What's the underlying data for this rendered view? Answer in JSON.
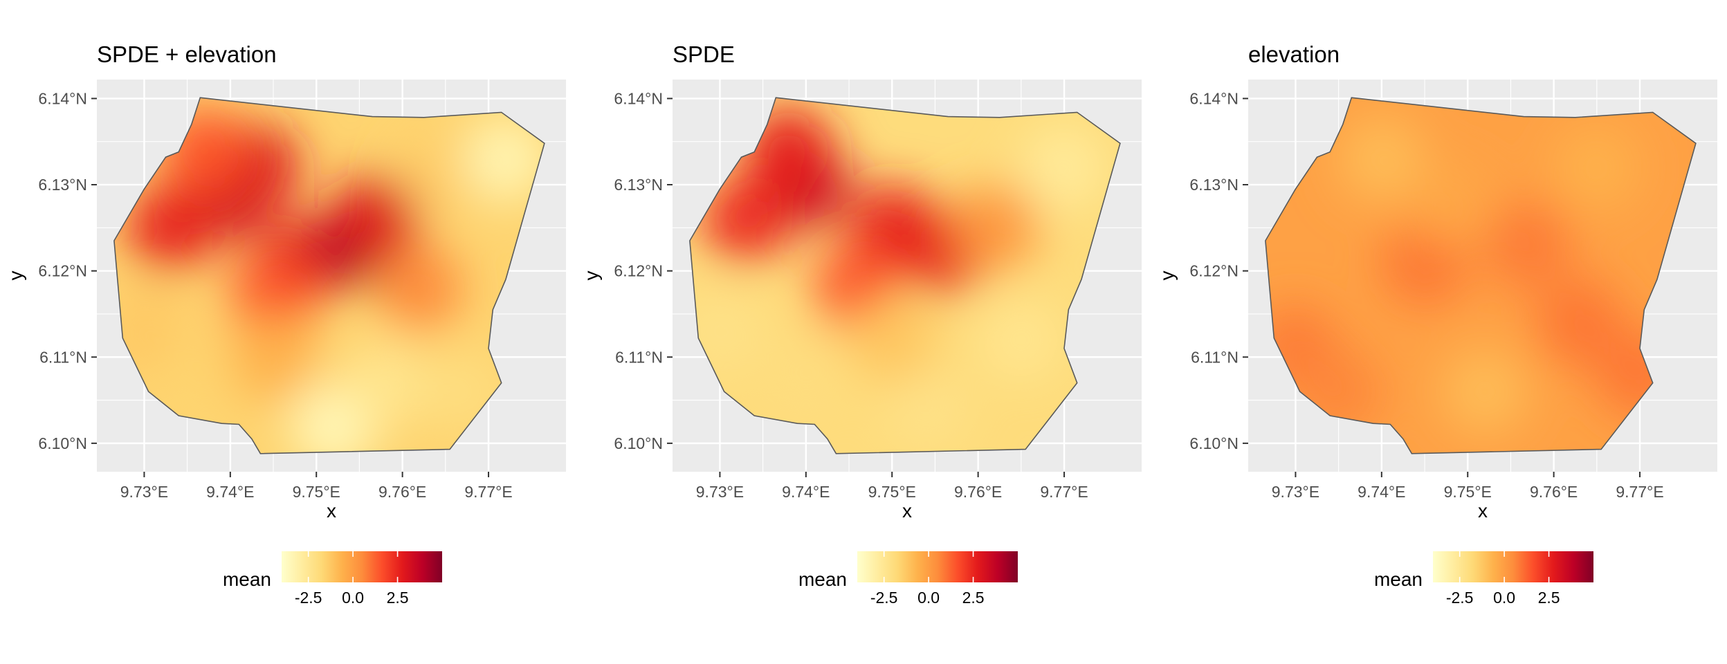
{
  "chart_data": [
    {
      "type": "heatmap",
      "title": "SPDE + elevation",
      "xlabel": "x",
      "ylabel": "y",
      "x_ticks": [
        "9.73°E",
        "9.74°E",
        "9.75°E",
        "9.76°E",
        "9.77°E"
      ],
      "y_ticks": [
        "6.10°N",
        "6.11°N",
        "6.12°N",
        "6.13°N",
        "6.14°N"
      ],
      "legend": {
        "title": "mean",
        "ticks": [
          "-2.5",
          "0.0",
          "2.5"
        ],
        "range": [
          -4,
          5
        ],
        "position": "bottom"
      },
      "blobs": [
        {
          "x": 9.74,
          "y": 6.1285,
          "value": 3.4
        },
        {
          "x": 9.743,
          "y": 6.132,
          "value": 3.0
        },
        {
          "x": 9.733,
          "y": 6.125,
          "value": 2.6
        },
        {
          "x": 9.748,
          "y": 6.121,
          "value": 2.8
        },
        {
          "x": 9.755,
          "y": 6.1235,
          "value": 4.3
        },
        {
          "x": 9.757,
          "y": 6.126,
          "value": 3.0
        },
        {
          "x": 9.745,
          "y": 6.117,
          "value": 1.6
        },
        {
          "x": 9.737,
          "y": 6.134,
          "value": 1.5
        },
        {
          "x": 9.762,
          "y": 6.118,
          "value": 0.5
        },
        {
          "x": 9.765,
          "y": 6.131,
          "value": -1.4
        },
        {
          "x": 9.772,
          "y": 6.133,
          "value": -3.3
        },
        {
          "x": 9.73,
          "y": 6.113,
          "value": -1.3
        },
        {
          "x": 9.737,
          "y": 6.108,
          "value": -1.6
        },
        {
          "x": 9.752,
          "y": 6.102,
          "value": -3.5
        },
        {
          "x": 9.758,
          "y": 6.107,
          "value": -2.4
        },
        {
          "x": 9.767,
          "y": 6.106,
          "value": -2.0
        },
        {
          "x": 9.745,
          "y": 6.11,
          "value": -0.6
        }
      ]
    },
    {
      "type": "heatmap",
      "title": "SPDE",
      "xlabel": "x",
      "ylabel": "y",
      "x_ticks": [
        "9.73°E",
        "9.74°E",
        "9.75°E",
        "9.76°E",
        "9.77°E"
      ],
      "y_ticks": [
        "6.10°N",
        "6.11°N",
        "6.12°N",
        "6.13°N",
        "6.14°N"
      ],
      "legend": {
        "title": "mean",
        "ticks": [
          "-2.5",
          "0.0",
          "2.5"
        ],
        "range": [
          -4,
          5
        ],
        "position": "bottom"
      },
      "blobs": [
        {
          "x": 9.74,
          "y": 6.13,
          "value": 3.6
        },
        {
          "x": 9.738,
          "y": 6.134,
          "value": 2.7
        },
        {
          "x": 9.733,
          "y": 6.126,
          "value": 2.4
        },
        {
          "x": 9.75,
          "y": 6.125,
          "value": 2.6
        },
        {
          "x": 9.756,
          "y": 6.1225,
          "value": 2.6
        },
        {
          "x": 9.746,
          "y": 6.118,
          "value": 1.6
        },
        {
          "x": 9.762,
          "y": 6.125,
          "value": 0.2
        },
        {
          "x": 9.77,
          "y": 6.132,
          "value": -2.7
        },
        {
          "x": 9.73,
          "y": 6.113,
          "value": -2.2
        },
        {
          "x": 9.74,
          "y": 6.108,
          "value": -2.0
        },
        {
          "x": 9.754,
          "y": 6.104,
          "value": -2.2
        },
        {
          "x": 9.765,
          "y": 6.112,
          "value": -2.4
        },
        {
          "x": 9.75,
          "y": 6.112,
          "value": -1.2
        }
      ]
    },
    {
      "type": "heatmap",
      "title": "elevation",
      "xlabel": "x",
      "ylabel": "y",
      "x_ticks": [
        "9.73°E",
        "9.74°E",
        "9.75°E",
        "9.76°E",
        "9.77°E"
      ],
      "y_ticks": [
        "6.10°N",
        "6.11°N",
        "6.12°N",
        "6.13°N",
        "6.14°N"
      ],
      "legend": {
        "title": "mean",
        "ticks": [
          "-2.5",
          "0.0",
          "2.5"
        ],
        "range": [
          -4,
          5
        ],
        "position": "bottom"
      },
      "blobs": [
        {
          "x": 9.745,
          "y": 6.121,
          "value": 0.9
        },
        {
          "x": 9.757,
          "y": 6.123,
          "value": 0.8
        },
        {
          "x": 9.763,
          "y": 6.114,
          "value": 0.9
        },
        {
          "x": 9.73,
          "y": 6.111,
          "value": 0.8
        },
        {
          "x": 9.735,
          "y": 6.106,
          "value": 0.6
        },
        {
          "x": 9.77,
          "y": 6.108,
          "value": 0.9
        },
        {
          "x": 9.74,
          "y": 6.133,
          "value": -0.9
        },
        {
          "x": 9.765,
          "y": 6.132,
          "value": -0.6
        },
        {
          "x": 9.752,
          "y": 6.106,
          "value": -0.9
        },
        {
          "x": 9.748,
          "y": 6.128,
          "value": -0.3
        }
      ]
    }
  ],
  "region_outline": [
    [
      9.7365,
      6.1401
    ],
    [
      9.7565,
      6.1379
    ],
    [
      9.7625,
      6.1378
    ],
    [
      9.7715,
      6.1384
    ],
    [
      9.7765,
      6.1348
    ],
    [
      9.772,
      6.119
    ],
    [
      9.7705,
      6.1155
    ],
    [
      9.77,
      6.111
    ],
    [
      9.7715,
      6.107
    ],
    [
      9.7655,
      6.0993
    ],
    [
      9.7435,
      6.0988
    ],
    [
      9.7425,
      6.1005
    ],
    [
      9.741,
      6.1022
    ],
    [
      9.739,
      6.1023
    ],
    [
      9.734,
      6.1032
    ],
    [
      9.7305,
      6.106
    ],
    [
      9.7275,
      6.1122
    ],
    [
      9.7265,
      6.1235
    ],
    [
      9.73,
      6.1295
    ],
    [
      9.7325,
      6.1332
    ],
    [
      9.734,
      6.1338
    ],
    [
      9.7355,
      6.137
    ]
  ],
  "colors": {
    "panel_bg": "#ebebeb",
    "grid_major": "#ffffff",
    "outline": "#595959",
    "scale": [
      "#ffffcc",
      "#ffeda0",
      "#fed976",
      "#feb24c",
      "#fd8d3c",
      "#fc4e2a",
      "#e31a1c",
      "#bd0026",
      "#800026"
    ]
  }
}
